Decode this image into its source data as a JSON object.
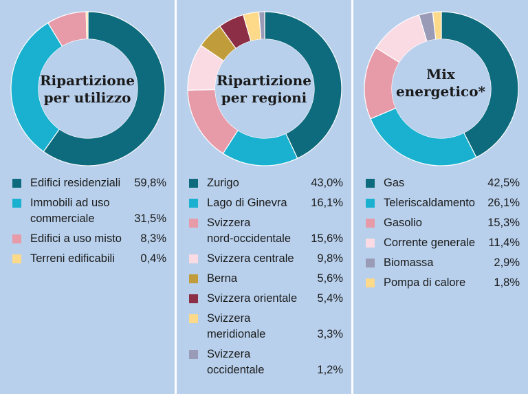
{
  "chart_data": [
    {
      "type": "pie",
      "title": "Ripartizione\nper utilizzo",
      "slices": [
        {
          "label": "Edifici residenziali",
          "value": 59.8,
          "display": "59,8%",
          "color": "#0e6b7d"
        },
        {
          "label": "Immobili ad uso\ncommerciale",
          "value": 31.5,
          "display": "31,5%",
          "color": "#19b1cf"
        },
        {
          "label": "Edifici a uso misto",
          "value": 8.3,
          "display": "8,3%",
          "color": "#e79aa8"
        },
        {
          "label": "Terreni edificabili",
          "value": 0.4,
          "display": "0,4%",
          "color": "#fdd98a"
        }
      ]
    },
    {
      "type": "pie",
      "title": "Ripartizione\nper regioni",
      "slices": [
        {
          "label": "Zurigo",
          "value": 43.0,
          "display": "43,0%",
          "color": "#0e6b7d"
        },
        {
          "label": "Lago di Ginevra",
          "value": 16.1,
          "display": "16,1%",
          "color": "#19b1cf"
        },
        {
          "label": "Svizzera\nnord-occidentale",
          "value": 15.6,
          "display": "15,6%",
          "color": "#e79aa8"
        },
        {
          "label": "Svizzera centrale",
          "value": 9.8,
          "display": "9,8%",
          "color": "#fadbe4"
        },
        {
          "label": "Berna",
          "value": 5.6,
          "display": "5,6%",
          "color": "#c19c3b"
        },
        {
          "label": "Svizzera orientale",
          "value": 5.4,
          "display": "5,4%",
          "color": "#8c2e45"
        },
        {
          "label": "Svizzera\nmeridionale",
          "value": 3.3,
          "display": "3,3%",
          "color": "#fdd98a"
        },
        {
          "label": "Svizzera\noccidentale",
          "value": 1.2,
          "display": "1,2%",
          "color": "#9a9bb7"
        }
      ]
    },
    {
      "type": "pie",
      "title": "Mix\nenergetico*",
      "slices": [
        {
          "label": "Gas",
          "value": 42.5,
          "display": "42,5%",
          "color": "#0e6b7d"
        },
        {
          "label": "Teleriscaldamento",
          "value": 26.1,
          "display": "26,1%",
          "color": "#19b1cf"
        },
        {
          "label": "Gasolio",
          "value": 15.3,
          "display": "15,3%",
          "color": "#e79aa8"
        },
        {
          "label": "Corrente generale",
          "value": 11.4,
          "display": "11,4%",
          "color": "#fadbe4"
        },
        {
          "label": "Biomassa",
          "value": 2.9,
          "display": "2,9%",
          "color": "#9a9bb7"
        },
        {
          "label": "Pompa di calore",
          "value": 1.8,
          "display": "1,8%",
          "color": "#fdd98a"
        }
      ]
    }
  ]
}
